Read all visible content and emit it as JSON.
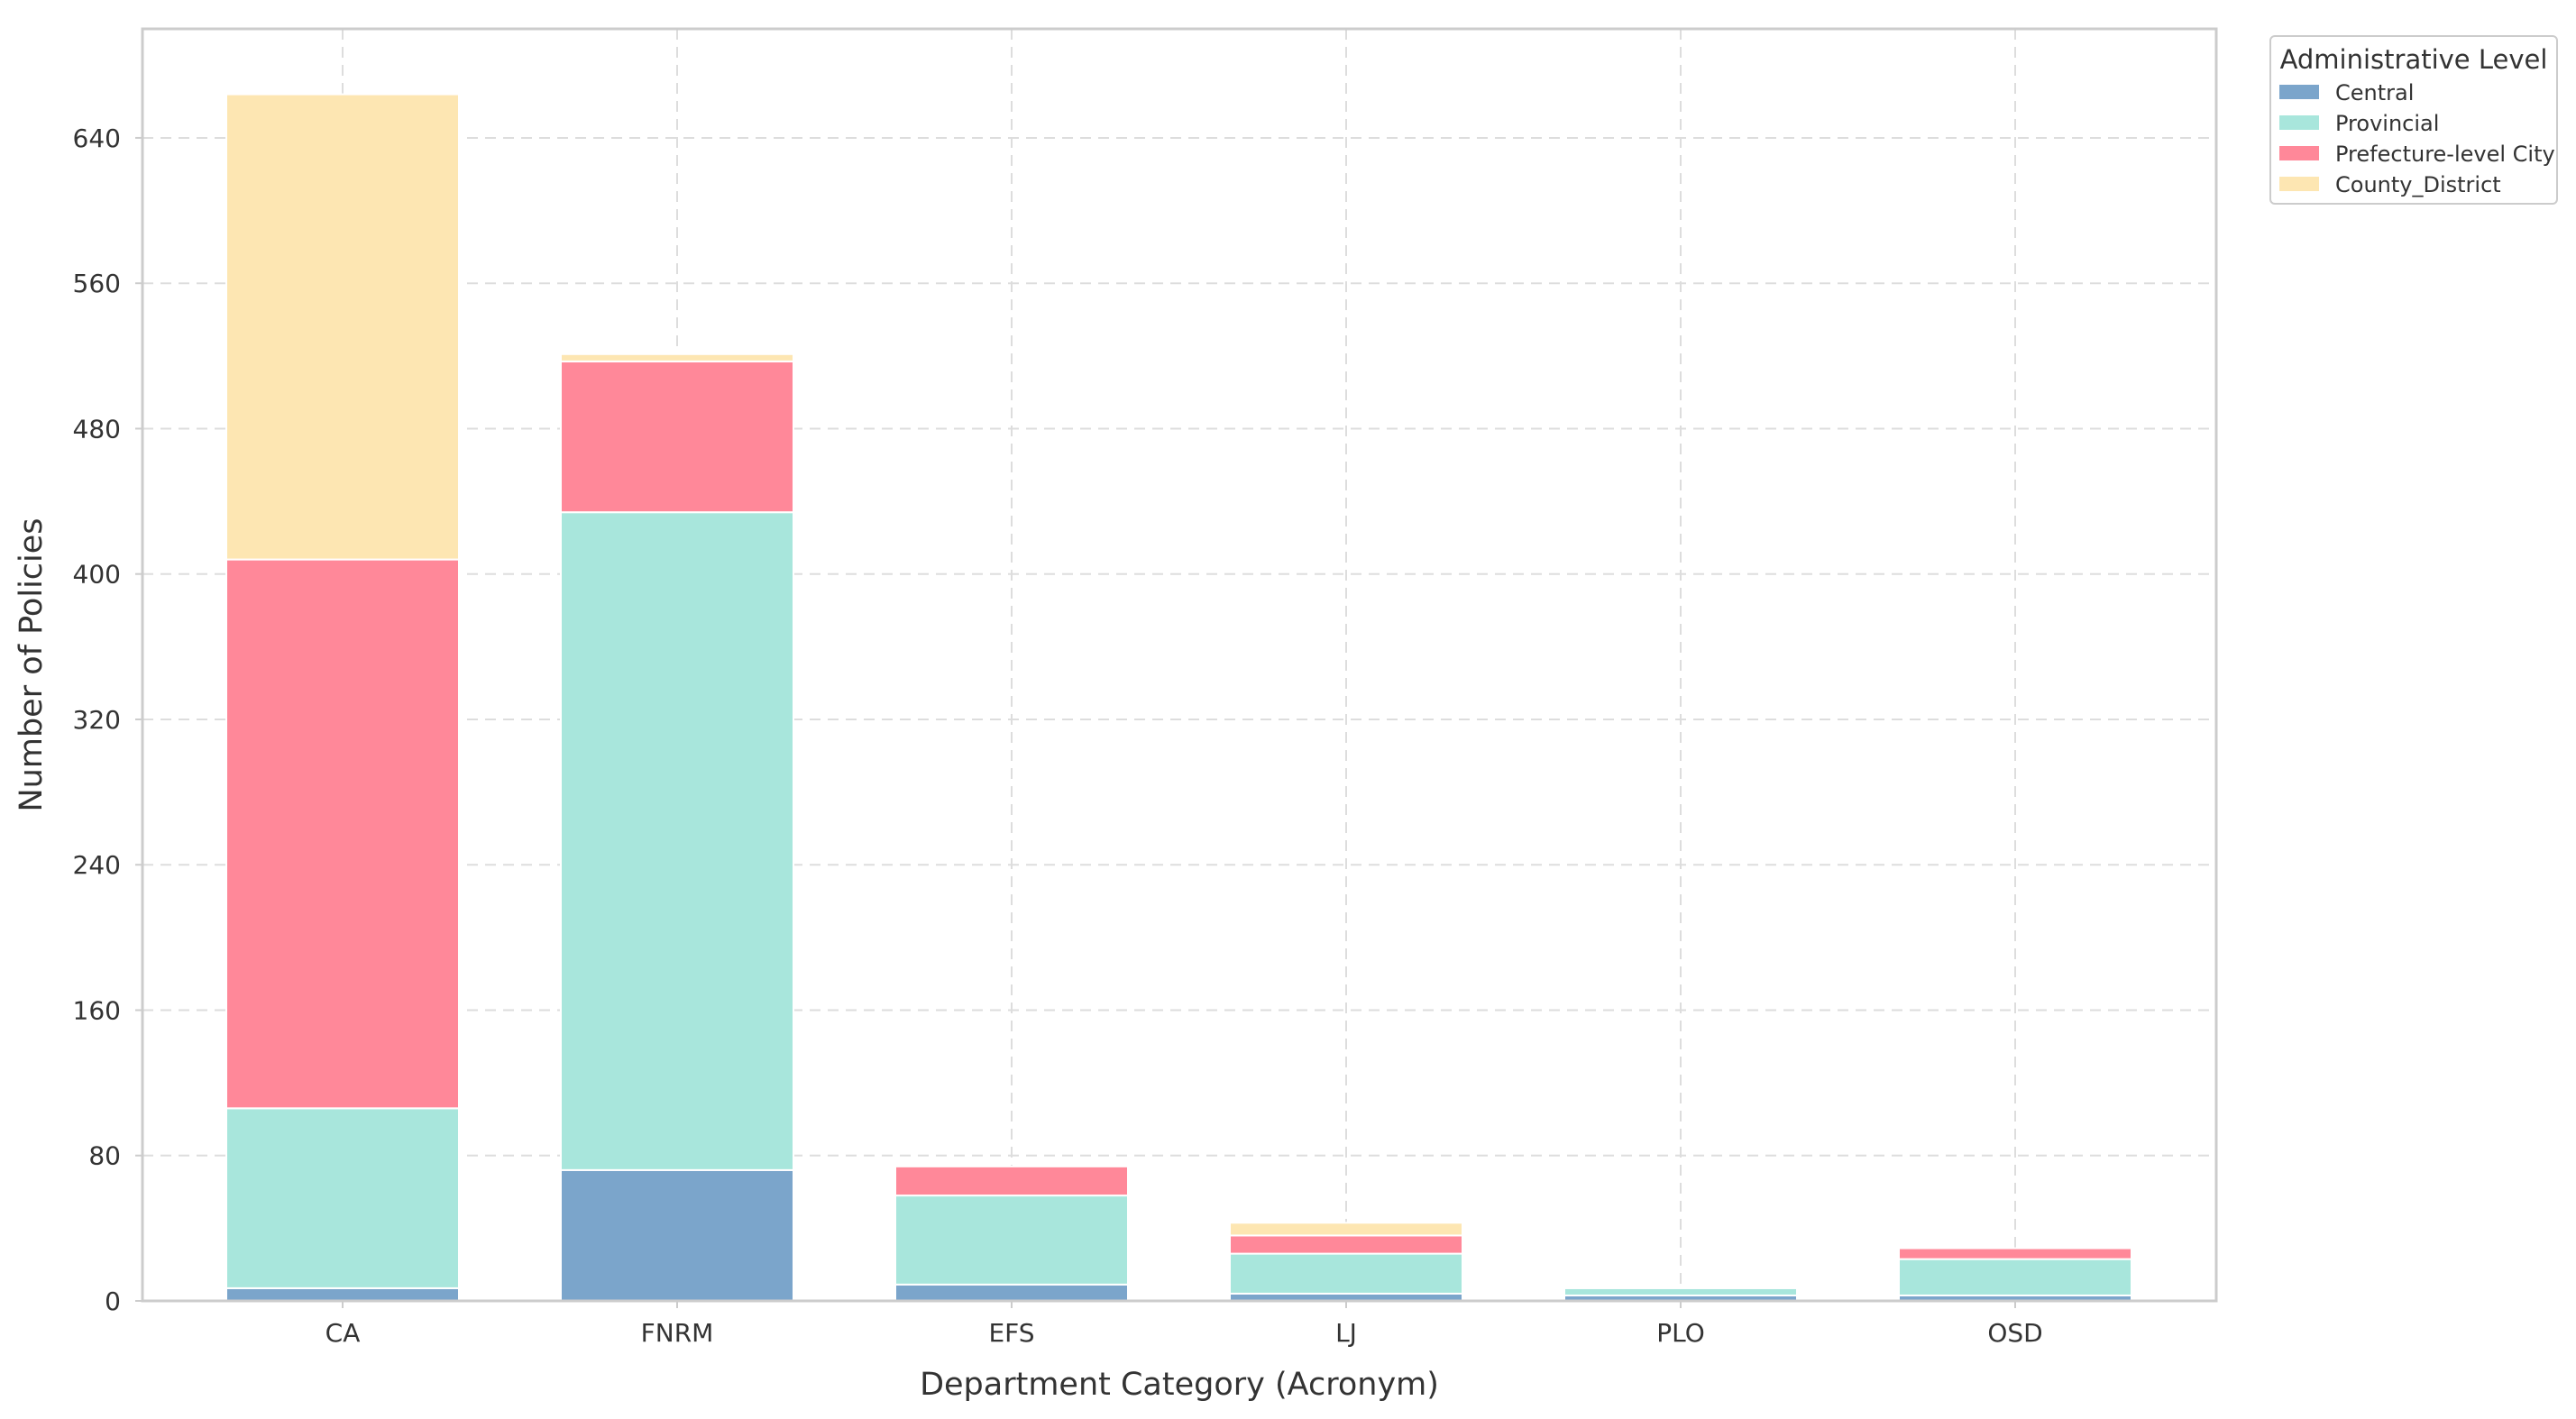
{
  "chart_data": {
    "type": "bar",
    "stacked": true,
    "title": "",
    "xlabel": "Department Category (Acronym)",
    "ylabel": "Number of Policies",
    "categories": [
      "CA",
      "FNRM",
      "EFS",
      "LJ",
      "PLO",
      "OSD"
    ],
    "series": [
      {
        "name": "Central",
        "color": "#7ba5cb",
        "values": [
          7,
          72,
          9,
          4,
          3,
          3
        ]
      },
      {
        "name": "Provincial",
        "color": "#a8e6dc",
        "values": [
          99,
          362,
          49,
          22,
          4,
          20
        ]
      },
      {
        "name": "Prefecture-level City",
        "color": "#ff8899",
        "values": [
          302,
          83,
          16,
          10,
          0,
          6
        ]
      },
      {
        "name": "County_District",
        "color": "#fde6b2",
        "values": [
          256,
          4,
          0,
          7,
          1,
          0
        ]
      }
    ],
    "ylim": [
      0,
      700
    ],
    "yticks": [
      0,
      80,
      160,
      240,
      320,
      400,
      480,
      560,
      640
    ],
    "grid": true,
    "legend": {
      "title": "Administrative Level",
      "placement": "outside-top-right"
    }
  }
}
